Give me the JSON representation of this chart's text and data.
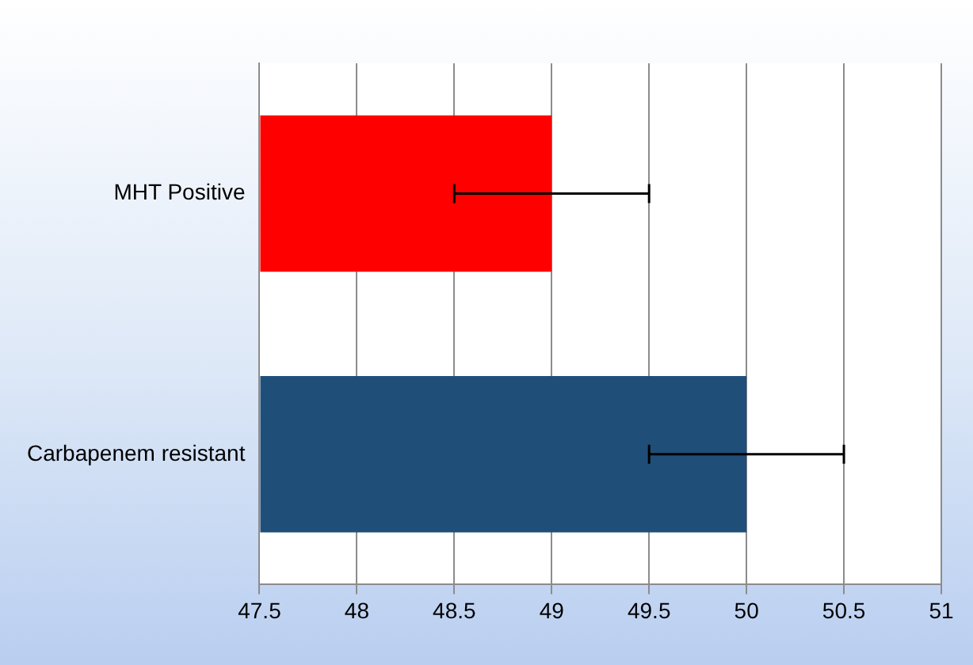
{
  "chart_data": {
    "type": "bar",
    "orientation": "horizontal",
    "categories": [
      "MHT Positive",
      "Carbapenem resistant"
    ],
    "values": [
      49,
      50
    ],
    "colors": [
      "#ff0000",
      "#1f4e79"
    ],
    "errors": [
      0.5,
      0.5
    ],
    "xlim": [
      47.5,
      51
    ],
    "xticks": [
      47.5,
      48,
      48.5,
      49,
      49.5,
      50,
      50.5,
      51
    ],
    "grid": "x",
    "legend": false
  }
}
